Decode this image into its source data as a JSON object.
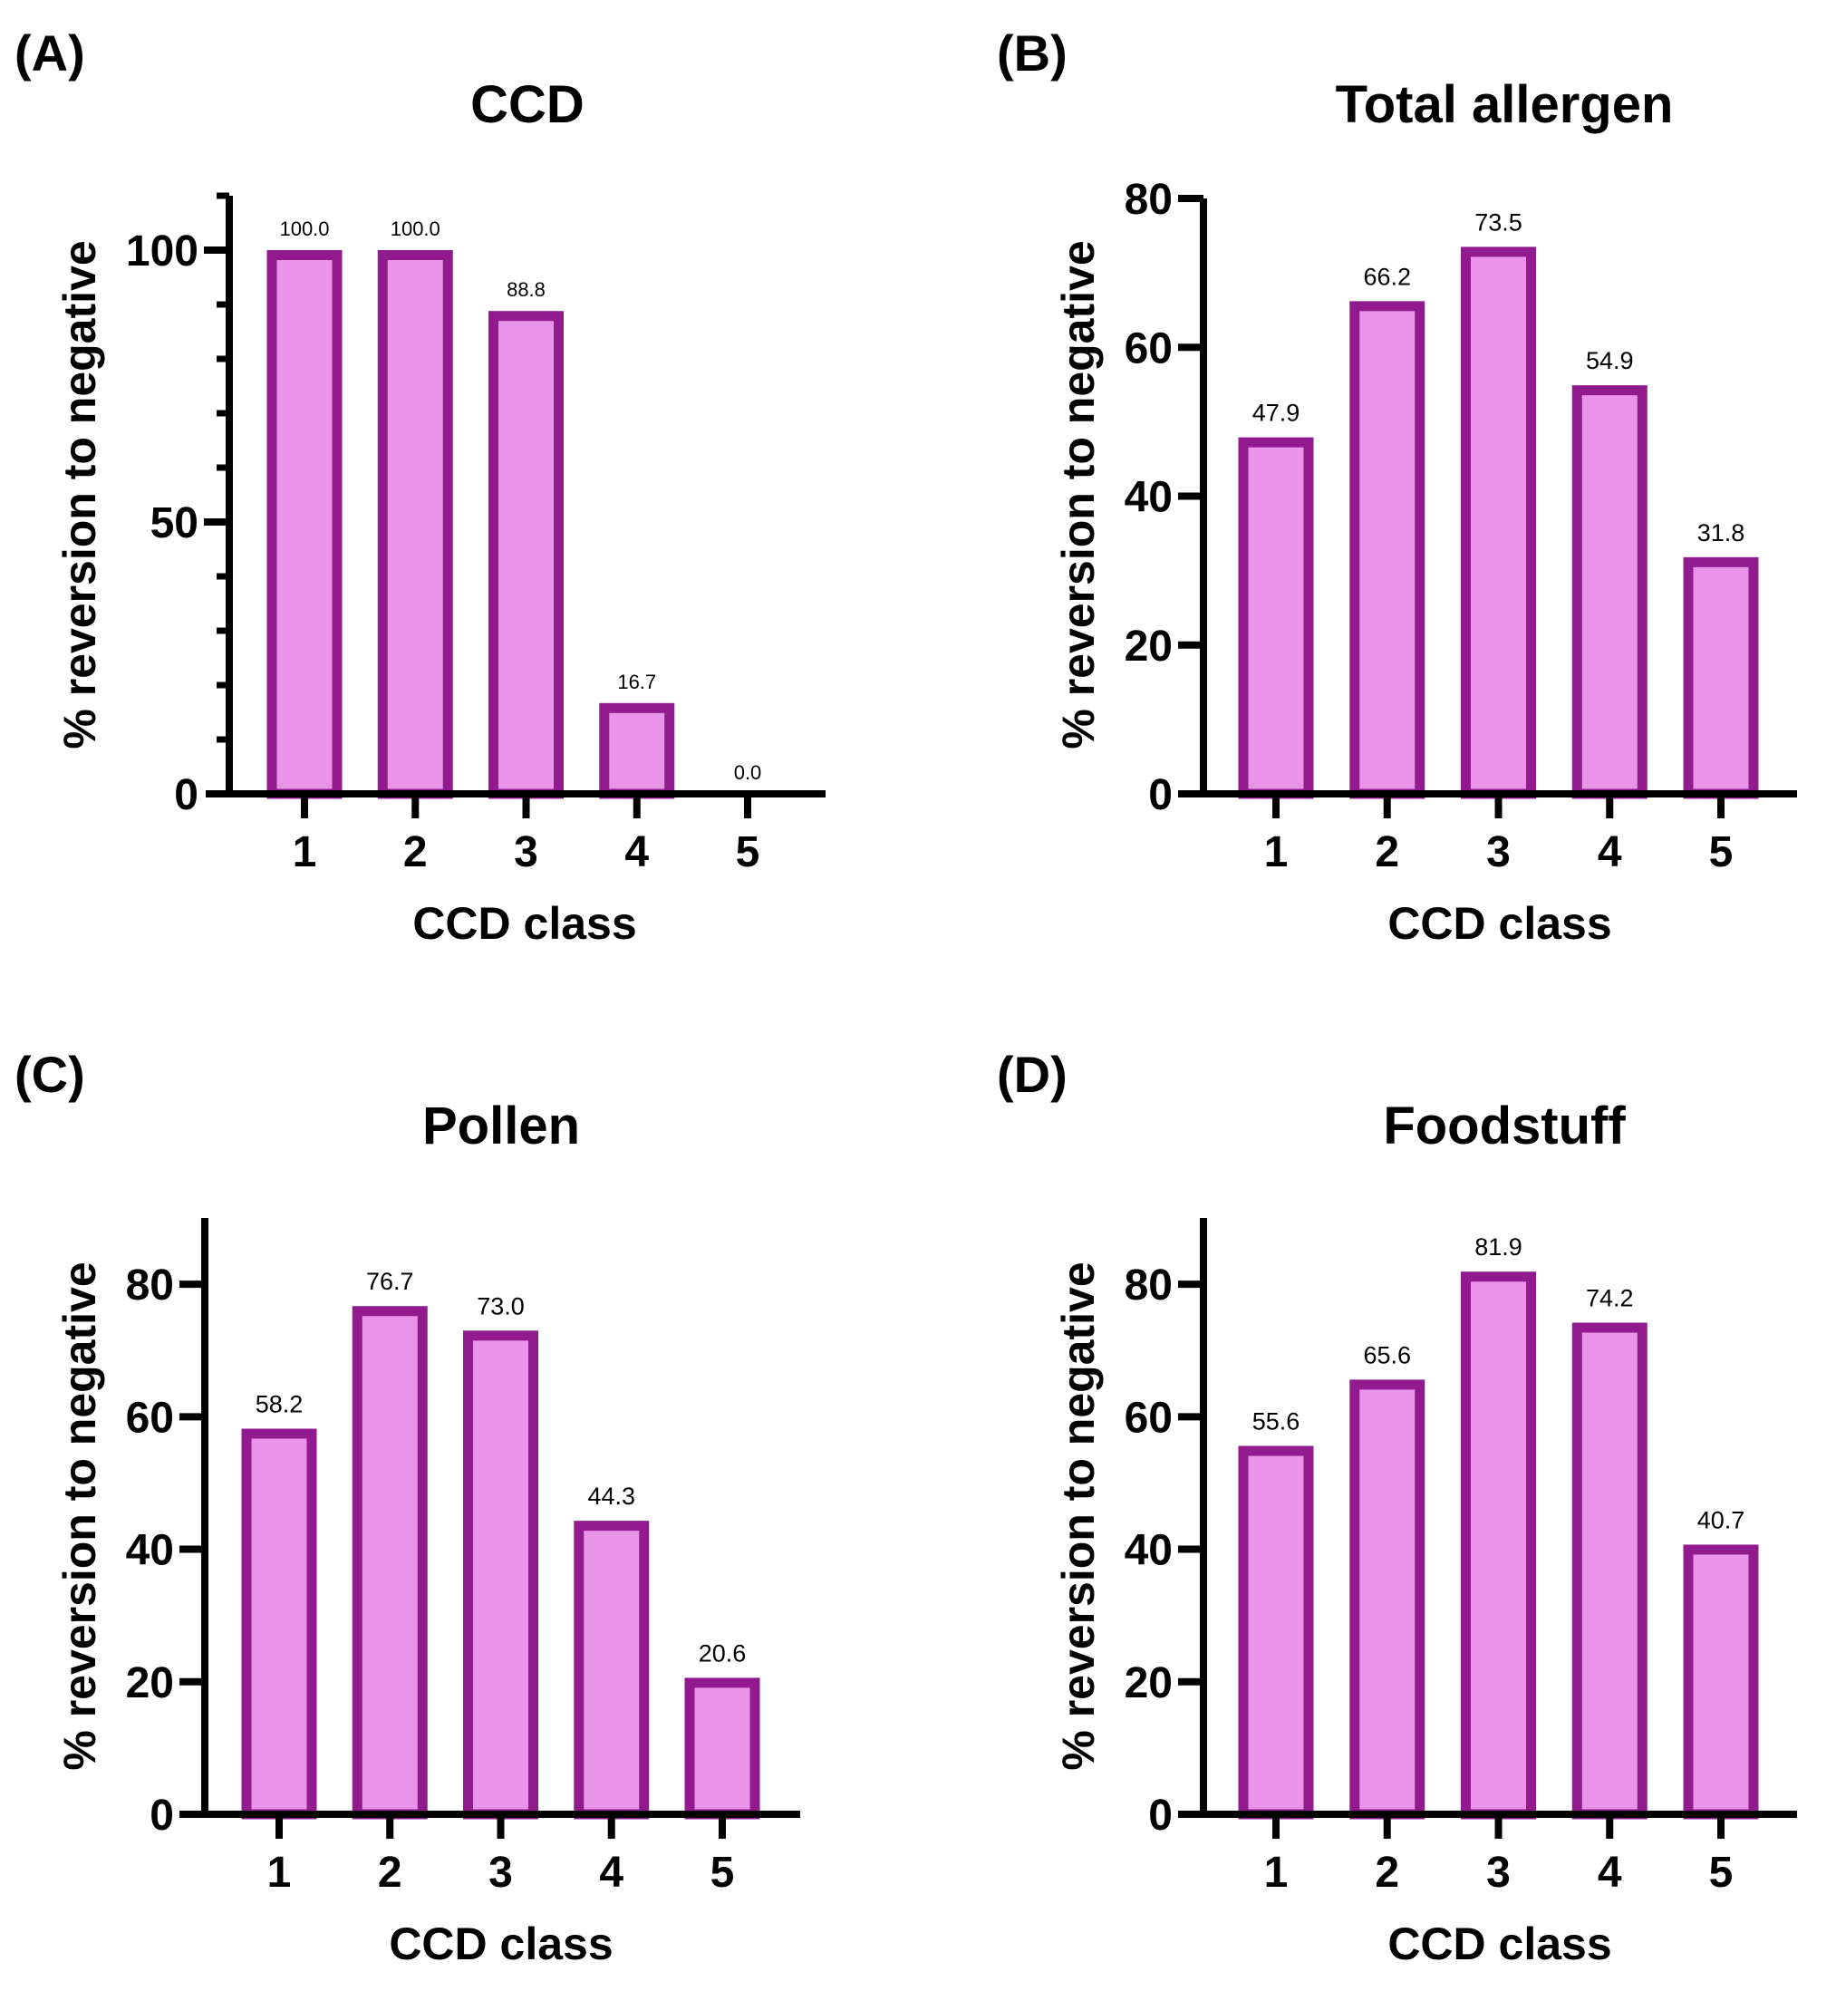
{
  "figure": {
    "bar_fill": "#e994e9",
    "bar_stroke": "#911a8f",
    "axis_color": "#000000"
  },
  "chart_data": [
    {
      "panel": "(A)",
      "type": "bar",
      "title": "CCD",
      "xlabel": "CCD class",
      "ylabel": "% reversion to negative",
      "categories": [
        "1",
        "2",
        "3",
        "4",
        "5"
      ],
      "values": [
        100.0,
        100.0,
        88.8,
        16.7,
        0.0
      ],
      "value_labels": [
        "100.0",
        "100.0",
        "88.8",
        "16.7",
        "0.0"
      ],
      "ylim": [
        0,
        110
      ],
      "yticks": [
        0,
        50,
        100
      ],
      "ytick_labels": [
        "0",
        "50",
        "100"
      ],
      "minor_tick_step": 10,
      "grid": false,
      "legend": "none"
    },
    {
      "panel": "(B)",
      "type": "bar",
      "title": "Total allergen",
      "xlabel": "CCD class",
      "ylabel": "% reversion to negative",
      "categories": [
        "1",
        "2",
        "3",
        "4",
        "5"
      ],
      "values": [
        47.9,
        66.2,
        73.5,
        54.9,
        31.8
      ],
      "value_labels": [
        "47.9",
        "66.2",
        "73.5",
        "54.9",
        "31.8"
      ],
      "ylim": [
        0,
        80
      ],
      "yticks": [
        0,
        20,
        40,
        60,
        80
      ],
      "ytick_labels": [
        "0",
        "20",
        "40",
        "60",
        "80"
      ],
      "minor_tick_step": null,
      "grid": false,
      "legend": "none"
    },
    {
      "panel": "(C)",
      "type": "bar",
      "title": "Pollen",
      "xlabel": "CCD class",
      "ylabel": "% reversion to negative",
      "categories": [
        "1",
        "2",
        "3",
        "4",
        "5"
      ],
      "values": [
        58.2,
        76.7,
        73.0,
        44.3,
        20.6
      ],
      "value_labels": [
        "58.2",
        "76.7",
        "73.0",
        "44.3",
        "20.6"
      ],
      "ylim": [
        0,
        90
      ],
      "yticks": [
        0,
        20,
        40,
        60,
        80
      ],
      "ytick_labels": [
        "0",
        "20",
        "40",
        "60",
        "80"
      ],
      "minor_tick_step": null,
      "grid": false,
      "legend": "none"
    },
    {
      "panel": "(D)",
      "type": "bar",
      "title": "Foodstuff",
      "xlabel": "CCD class",
      "ylabel": "% reversion to negative",
      "categories": [
        "1",
        "2",
        "3",
        "4",
        "5"
      ],
      "values": [
        55.6,
        65.6,
        81.9,
        74.2,
        40.7
      ],
      "value_labels": [
        "55.6",
        "65.6",
        "81.9",
        "74.2",
        "40.7"
      ],
      "ylim": [
        0,
        90
      ],
      "yticks": [
        0,
        20,
        40,
        60,
        80
      ],
      "ytick_labels": [
        "0",
        "20",
        "40",
        "60",
        "80"
      ],
      "minor_tick_step": null,
      "grid": false,
      "legend": "none"
    }
  ]
}
